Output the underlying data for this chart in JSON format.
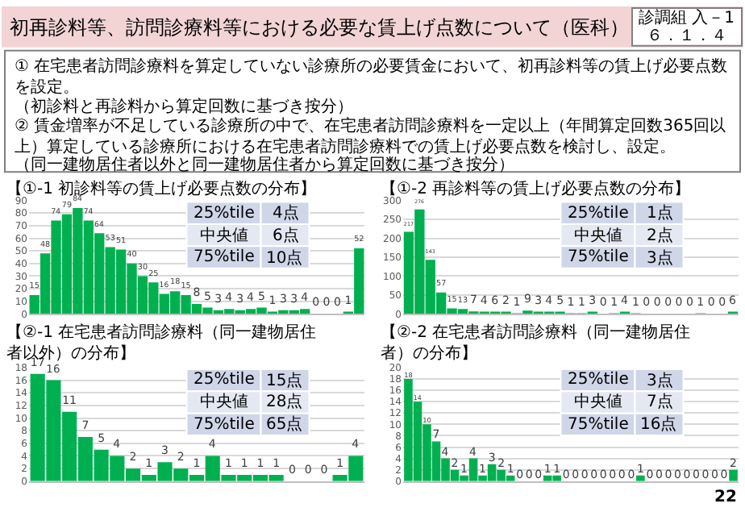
{
  "chart_data": [
    {
      "type": "bar",
      "title": "【①-1 初診料等の賃上げ必要点数の分布】",
      "categories": [
        null,
        null,
        null,
        null,
        null,
        null,
        null,
        null,
        null,
        null,
        null,
        null,
        null,
        null,
        null,
        null,
        null,
        null,
        null,
        null,
        null,
        null,
        null,
        null,
        null,
        null,
        null,
        null,
        null,
        null,
        null
      ],
      "values": [
        15,
        48,
        74,
        79,
        84,
        74,
        64,
        53,
        51,
        40,
        30,
        25,
        16,
        18,
        15,
        8,
        5,
        3,
        4,
        3,
        4,
        5,
        1,
        3,
        3,
        4,
        0,
        0,
        0,
        1,
        52
      ],
      "color": "#00b050",
      "ylim": [
        0,
        90
      ],
      "yticks": [
        0,
        10,
        20,
        30,
        40,
        50,
        60,
        70,
        80,
        90
      ],
      "grid": "y",
      "data_labels": true,
      "tick_labels": "y",
      "annotations": [
        "25%tile",
        "4点",
        "中央値",
        "6点",
        "75%tile",
        "10点",
        "初再診料等、訪問診療料等における必要な賃上げ点数について（医科）",
        "① 在宅患者訪問診療料を算定していない診療所の必要賃金において、初再診料等の賃上げ必要点数を設定。",
        "（初診料と再診料から算定回数に基づき按分）",
        "② 賃金増率が不足している診療所の中で、在宅患者訪問診療料を一定以上（年間算定回数365回以上）算定している診療所における在宅患者訪問診療料での賃上げ必要点数を検討し、設定。",
        "（同一建物居住者以外と同一建物居住者から算定回数に基づき按分）",
        "診調組 入－1",
        "６．１．４",
        "22"
      ]
    },
    {
      "type": "bar",
      "title": "【①-2 再診料等の賃上げ必要点数の分布】",
      "categories": [
        null,
        null,
        null,
        null,
        null,
        null,
        null,
        null,
        null,
        null,
        null,
        null,
        null,
        null,
        null,
        null,
        null,
        null,
        null,
        null,
        null,
        null,
        null,
        null,
        null,
        null,
        null,
        null,
        null,
        null,
        null
      ],
      "values": [
        217,
        276,
        143,
        57,
        15,
        13,
        7,
        4,
        6,
        2,
        1,
        9,
        3,
        4,
        5,
        1,
        1,
        3,
        0,
        1,
        4,
        1,
        0,
        0,
        0,
        0,
        0,
        1,
        0,
        0,
        6
      ],
      "color": "#00b050",
      "ylim": [
        0,
        300
      ],
      "yticks": [
        0,
        50,
        100,
        150,
        200,
        250,
        300
      ],
      "grid": "y",
      "data_labels": true,
      "tick_labels": "y",
      "annotations": [
        "25%tile",
        "1点",
        "中央値",
        "2点",
        "75%tile",
        "3点"
      ]
    },
    {
      "type": "bar",
      "title": "【②-1 在宅患者訪問診療料（同一建物居住者以外）の分布】",
      "categories": [
        null,
        null,
        null,
        null,
        null,
        null,
        null,
        null,
        null,
        null,
        null,
        null,
        null,
        null,
        null,
        null,
        null,
        null,
        null,
        null,
        null
      ],
      "values": [
        17,
        16,
        11,
        7,
        5,
        4,
        2,
        1,
        3,
        2,
        1,
        4,
        1,
        1,
        1,
        1,
        0,
        0,
        0,
        1,
        4
      ],
      "color": "#00b050",
      "ylim": [
        0,
        18
      ],
      "yticks": [
        0,
        2,
        4,
        6,
        8,
        10,
        12,
        14,
        16,
        18
      ],
      "grid": "y",
      "data_labels": true,
      "tick_labels": "y",
      "annotations": [
        "25%tile",
        "15点",
        "中央値",
        "28点",
        "75%tile",
        "65点"
      ]
    },
    {
      "type": "bar",
      "title": "【②-2 在宅患者訪問診療料（同一建物居住者）の分布】",
      "categories": [
        null,
        null,
        null,
        null,
        null,
        null,
        null,
        null,
        null,
        null,
        null,
        null,
        null,
        null,
        null,
        null,
        null,
        null,
        null,
        null,
        null,
        null,
        null,
        null,
        null,
        null,
        null,
        null,
        null,
        null,
        null,
        null,
        null,
        null,
        null,
        null
      ],
      "values": [
        18,
        14,
        10,
        7,
        4,
        2,
        1,
        4,
        1,
        3,
        2,
        1,
        0,
        0,
        0,
        1,
        1,
        0,
        0,
        0,
        0,
        0,
        0,
        0,
        0,
        1,
        0,
        0,
        0,
        0,
        0,
        0,
        0,
        0,
        0,
        2
      ],
      "color": "#00b050",
      "ylim": [
        0,
        20
      ],
      "yticks": [
        0,
        2,
        4,
        6,
        8,
        10,
        12,
        14,
        16,
        18,
        20
      ],
      "grid": "y",
      "data_labels": true,
      "tick_labels": "y",
      "annotations": [
        "25%tile",
        "3点",
        "中央値",
        "7点",
        "75%tile",
        "16点"
      ]
    }
  ]
}
